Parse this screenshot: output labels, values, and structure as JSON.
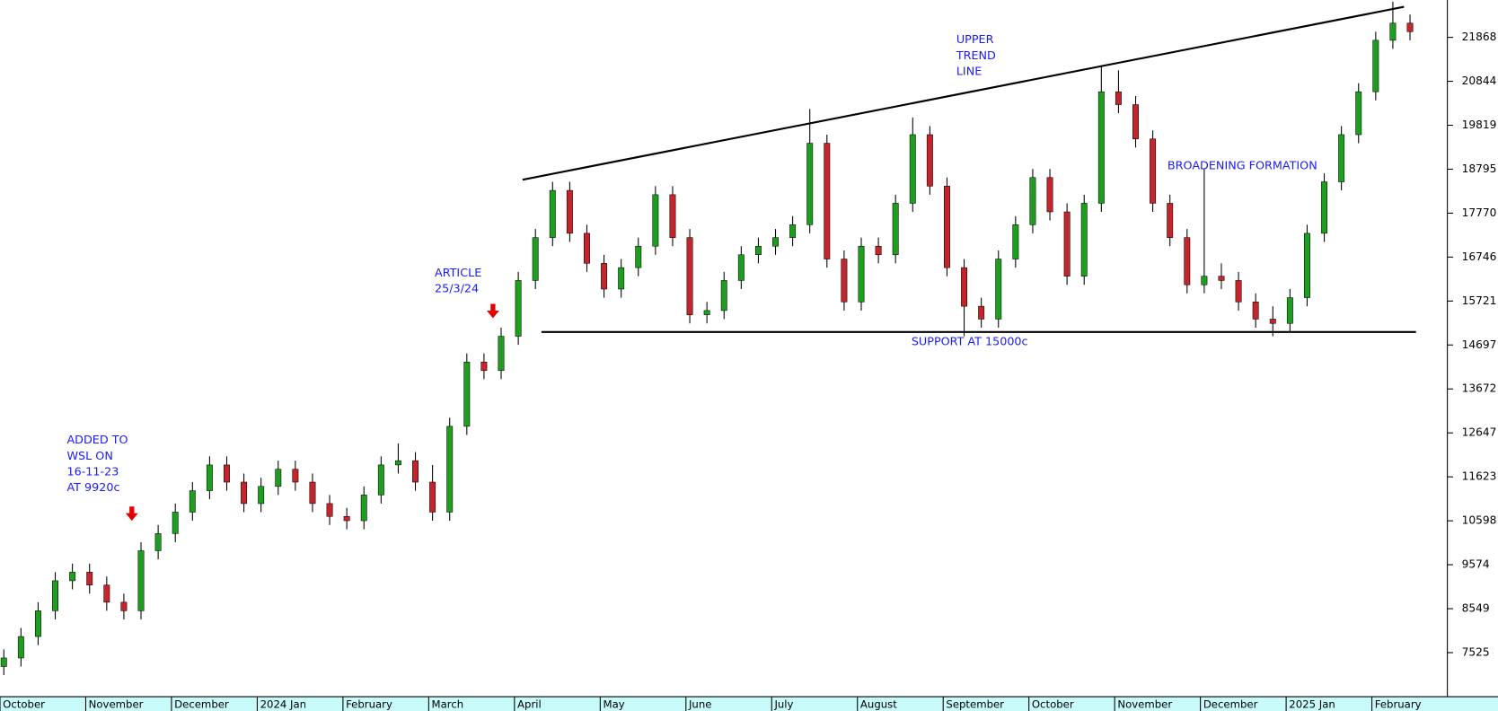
{
  "chart_data": {
    "type": "candlestick",
    "categories": [
      "October",
      null,
      null,
      null,
      null,
      "November",
      null,
      null,
      null,
      null,
      "December",
      null,
      null,
      null,
      null,
      "2024 Jan",
      null,
      null,
      null,
      null,
      "February",
      null,
      null,
      null,
      null,
      "March",
      null,
      null,
      null,
      null,
      "April",
      null,
      null,
      null,
      null,
      "May",
      null,
      null,
      null,
      null,
      "June",
      null,
      null,
      null,
      null,
      "July",
      null,
      null,
      null,
      null,
      "August",
      null,
      null,
      null,
      null,
      "September",
      null,
      null,
      null,
      null,
      "October",
      null,
      null,
      null,
      null,
      "November",
      null,
      null,
      null,
      null,
      "December",
      null,
      null,
      null,
      null,
      "2025 Jan",
      null,
      null,
      null,
      null,
      "February",
      null,
      null
    ],
    "candles": [
      [
        7200,
        7600,
        7000,
        7400
      ],
      [
        7400,
        8100,
        7200,
        7900
      ],
      [
        7900,
        8700,
        7700,
        8500
      ],
      [
        8500,
        9400,
        8300,
        9200
      ],
      [
        9200,
        9600,
        9000,
        9400
      ],
      [
        9400,
        9600,
        8900,
        9100
      ],
      [
        9100,
        9300,
        8500,
        8700
      ],
      [
        8700,
        8900,
        8300,
        8500
      ],
      [
        8500,
        10100,
        8300,
        9900
      ],
      [
        9900,
        10500,
        9700,
        10300
      ],
      [
        10300,
        11000,
        10100,
        10800
      ],
      [
        10800,
        11500,
        10600,
        11300
      ],
      [
        11300,
        12100,
        11100,
        11900
      ],
      [
        11900,
        12100,
        11300,
        11500
      ],
      [
        11500,
        11700,
        10800,
        11000
      ],
      [
        11000,
        11600,
        10800,
        11400
      ],
      [
        11400,
        12000,
        11200,
        11800
      ],
      [
        11800,
        12000,
        11300,
        11500
      ],
      [
        11500,
        11700,
        10800,
        11000
      ],
      [
        11000,
        11200,
        10500,
        10700
      ],
      [
        10700,
        10900,
        10400,
        10600
      ],
      [
        10600,
        11400,
        10400,
        11200
      ],
      [
        11200,
        12100,
        11000,
        11900
      ],
      [
        11900,
        12400,
        11700,
        12000
      ],
      [
        12000,
        12200,
        11300,
        11500
      ],
      [
        11500,
        11900,
        10600,
        10800
      ],
      [
        10800,
        13000,
        10600,
        12800
      ],
      [
        12800,
        14500,
        12600,
        14300
      ],
      [
        14300,
        14500,
        13900,
        14100
      ],
      [
        14100,
        15100,
        13900,
        14900
      ],
      [
        14900,
        16400,
        14700,
        16200
      ],
      [
        16200,
        17400,
        16000,
        17200
      ],
      [
        17200,
        18500,
        17000,
        18300
      ],
      [
        18300,
        18500,
        17100,
        17300
      ],
      [
        17300,
        17500,
        16400,
        16600
      ],
      [
        16600,
        16800,
        15800,
        16000
      ],
      [
        16000,
        16700,
        15800,
        16500
      ],
      [
        16500,
        17200,
        16300,
        17000
      ],
      [
        17000,
        18400,
        16800,
        18200
      ],
      [
        18200,
        18400,
        17000,
        17200
      ],
      [
        17200,
        17400,
        15200,
        15400
      ],
      [
        15400,
        15700,
        15200,
        15500
      ],
      [
        15500,
        16400,
        15300,
        16200
      ],
      [
        16200,
        17000,
        16000,
        16800
      ],
      [
        16800,
        17200,
        16600,
        17000
      ],
      [
        17000,
        17400,
        16800,
        17200
      ],
      [
        17200,
        17700,
        17000,
        17500
      ],
      [
        17500,
        20200,
        17300,
        19400
      ],
      [
        19400,
        19600,
        16500,
        16700
      ],
      [
        16700,
        16900,
        15500,
        15700
      ],
      [
        15700,
        17200,
        15500,
        17000
      ],
      [
        17000,
        17200,
        16600,
        16800
      ],
      [
        16800,
        18200,
        16600,
        18000
      ],
      [
        18000,
        20000,
        17800,
        19600
      ],
      [
        19600,
        19800,
        18200,
        18400
      ],
      [
        18400,
        18600,
        16300,
        16500
      ],
      [
        16500,
        16700,
        14900,
        15600
      ],
      [
        15600,
        15800,
        15100,
        15300
      ],
      [
        15300,
        16900,
        15100,
        16700
      ],
      [
        16700,
        17700,
        16500,
        17500
      ],
      [
        17500,
        18800,
        17300,
        18600
      ],
      [
        18600,
        18800,
        17600,
        17800
      ],
      [
        17800,
        18000,
        16100,
        16300
      ],
      [
        16300,
        18200,
        16100,
        18000
      ],
      [
        18000,
        21200,
        17800,
        20600
      ],
      [
        20600,
        21100,
        20100,
        20300
      ],
      [
        20300,
        20500,
        19300,
        19500
      ],
      [
        19500,
        19700,
        17800,
        18000
      ],
      [
        18000,
        18200,
        17000,
        17200
      ],
      [
        17200,
        17400,
        15900,
        16100
      ],
      [
        16100,
        18800,
        15900,
        16300
      ],
      [
        16300,
        16600,
        16000,
        16200
      ],
      [
        16200,
        16400,
        15500,
        15700
      ],
      [
        15700,
        15900,
        15100,
        15300
      ],
      [
        15300,
        15600,
        14900,
        15200
      ],
      [
        15200,
        16000,
        15000,
        15800
      ],
      [
        15800,
        17500,
        15600,
        17300
      ],
      [
        17300,
        18700,
        17100,
        18500
      ],
      [
        18500,
        19800,
        18300,
        19600
      ],
      [
        19600,
        20800,
        19400,
        20600
      ],
      [
        20600,
        22000,
        20400,
        21800
      ],
      [
        21800,
        22700,
        21600,
        22200
      ],
      [
        22200,
        22400,
        21800,
        22000
      ]
    ],
    "up_color": "#1e9e1e",
    "down_color": "#c4242b",
    "ylim": [
      6498,
      22739
    ],
    "yticks": [
      7525,
      8549,
      9574,
      10598,
      11623,
      12647,
      13672,
      14697,
      15721,
      16746,
      17770,
      18795,
      19819,
      20844,
      21868
    ],
    "trend_lines": [
      {
        "from": [
          30.25,
          18550
        ],
        "to": [
          81.65,
          22580
        ]
      },
      {
        "from": [
          31.35,
          15000
        ],
        "to": [
          82.35,
          15000
        ]
      }
    ],
    "annotations": [
      [
        "ADDED TO",
        "WSL ON",
        "16-11-23",
        "AT 9920c"
      ],
      [
        "ARTICLE",
        "25/3/24"
      ],
      [
        "UPPER",
        "TREND",
        "LINE"
      ],
      [
        "SUPPORT AT 15000c"
      ],
      [
        "BROADENING FORMATION"
      ]
    ]
  }
}
